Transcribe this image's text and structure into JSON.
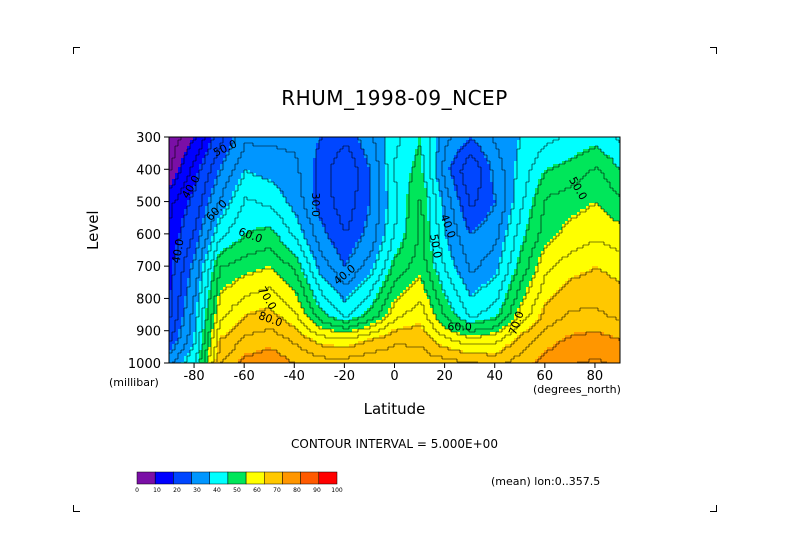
{
  "title": "RHUM_1998-09_NCEP",
  "ylabel": "Level",
  "yunit": "(millibar)",
  "xlabel": "Latitude",
  "xunit": "(degrees_north)",
  "interval_text": "CONTOUR INTERVAL = 5.000E+00",
  "mean_text": "(mean) lon:0..357.5",
  "chart_data": {
    "type": "heatmap",
    "title": "RHUM_1998-09_NCEP",
    "xlabel": "Latitude",
    "ylabel": "Level",
    "x_ticks": [
      "-80",
      "-60",
      "-40",
      "-20",
      "0",
      "20",
      "40",
      "60",
      "80"
    ],
    "y_ticks": [
      "300",
      "400",
      "500",
      "600",
      "700",
      "800",
      "900",
      "1000"
    ],
    "xlim": [
      -90,
      90
    ],
    "ylim": [
      1000,
      300
    ],
    "contour_interval": 5,
    "contour_labels": [
      "30.0",
      "40.0",
      "50.0",
      "60.0",
      "70.0",
      "80.0"
    ],
    "colorbar": {
      "ticks": [
        "0",
        "10",
        "20",
        "30",
        "40",
        "50",
        "60",
        "70",
        "80",
        "90",
        "100"
      ],
      "colors": [
        "#7a0fa6",
        "#0000ff",
        "#0046ff",
        "#0096ff",
        "#00ffff",
        "#00e65a",
        "#ffff00",
        "#ffc800",
        "#ff9600",
        "#ff5a00",
        "#ff0000"
      ]
    },
    "latitudes": [
      -90,
      -80,
      -70,
      -60,
      -50,
      -40,
      -30,
      -20,
      -10,
      0,
      10,
      20,
      30,
      40,
      50,
      60,
      70,
      80,
      90
    ],
    "levels": [
      1000,
      925,
      850,
      700,
      600,
      500,
      400,
      300
    ],
    "values": [
      [
        35,
        45,
        75,
        82,
        84,
        80,
        78,
        78,
        80,
        79,
        78,
        78,
        76,
        74,
        78,
        82,
        85,
        86,
        84
      ],
      [
        25,
        40,
        70,
        76,
        78,
        74,
        68,
        66,
        70,
        74,
        74,
        66,
        62,
        64,
        72,
        78,
        81,
        82,
        80
      ],
      [
        20,
        38,
        64,
        70,
        72,
        66,
        52,
        44,
        52,
        64,
        68,
        54,
        44,
        48,
        62,
        72,
        76,
        76,
        74
      ],
      [
        18,
        32,
        55,
        58,
        60,
        54,
        38,
        30,
        38,
        52,
        58,
        44,
        34,
        38,
        52,
        64,
        68,
        70,
        68
      ],
      [
        16,
        26,
        44,
        50,
        52,
        44,
        32,
        25,
        32,
        46,
        56,
        40,
        30,
        34,
        48,
        58,
        62,
        64,
        62
      ],
      [
        14,
        22,
        36,
        46,
        44,
        38,
        28,
        22,
        30,
        44,
        56,
        38,
        24,
        30,
        44,
        56,
        58,
        60,
        56
      ],
      [
        5,
        18,
        30,
        40,
        38,
        36,
        28,
        20,
        30,
        46,
        52,
        32,
        20,
        32,
        42,
        50,
        52,
        56,
        50
      ],
      [
        2,
        10,
        24,
        34,
        34,
        34,
        30,
        26,
        34,
        44,
        50,
        36,
        30,
        36,
        40,
        44,
        46,
        48,
        44
      ]
    ]
  }
}
